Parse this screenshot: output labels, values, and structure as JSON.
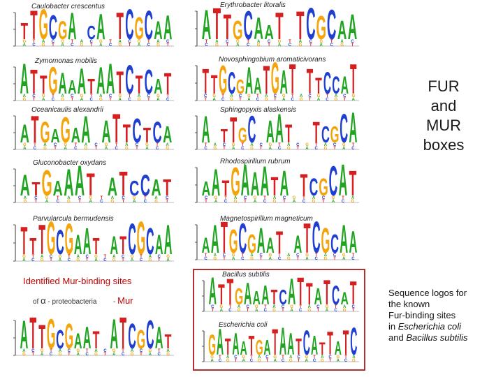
{
  "logo_colors": {
    "A": "#21a421",
    "C": "#1f3fd1",
    "G": "#f4a50c",
    "T": "#d42020"
  },
  "logos": [
    {
      "id": "caulobacter",
      "species": "Caulobacter crescentus",
      "motif": "TTGCGA.CA.TCGCAA"
    },
    {
      "id": "erythrobacter",
      "species": "Erythrobacter litoralis",
      "motif": "ATTGCAAT.TCGCAA"
    },
    {
      "id": "zymomonas",
      "species": "Zymomonas mobilis",
      "motif": "ATTGAAATAATCTCAT"
    },
    {
      "id": "novosphingobium",
      "species": "Novosphingobium aromaticivorans",
      "motif": "TTGCGAATGAT.TTCCAT"
    },
    {
      "id": "oceanicaulis",
      "species": "Oceanicaulis alexandrii",
      "motif": "ATGAGAA.ATTCTCA"
    },
    {
      "id": "sphingopyxis",
      "species": "Sphingopyxis alaskensis",
      "motif": "A.TTGC.AAT..TCGCA"
    },
    {
      "id": "gluconobacter",
      "species": "Gluconobacter oxydans",
      "motif": "ATGAAAT.ATCCAT"
    },
    {
      "id": "rhodospirillum",
      "species": "Rhodospirillum rubrum",
      "motif": "AATGAAATA.TCGCAT"
    },
    {
      "id": "parvularcula",
      "species": "Parvularcula bermudensis",
      "motif": "TTTGCGAAT.ATCGCAA"
    },
    {
      "id": "magnetospirillum",
      "species": "Magnetospirillum magneticum",
      "motif": "AATGCGAAT.ATCGCAA"
    },
    {
      "id": "alpha-mur",
      "species": "",
      "motif": "ATTGCGAAT.ATCGCAT"
    },
    {
      "id": "bacillus",
      "species": "Bacillus subtilis",
      "motif": "ATTGAAATCATTATCAT"
    },
    {
      "id": "ecoli",
      "species": "Escherichia coli",
      "motif": "GATAATGATAATCATTATC"
    }
  ],
  "side_title": [
    "FUR",
    "and",
    "MUR",
    "boxes"
  ],
  "mur_section": {
    "heading": "Identified Mur-binding sites",
    "sub_prefix": "of",
    "alpha": "α",
    "sub_suffix": "- proteobacteria",
    "dash": "-",
    "tag": "Mur"
  },
  "caption": {
    "line1": "Sequence logos for",
    "line2": "the known",
    "line3": "Fur-binding sites",
    "line4_prefix": "in",
    "ecoli": "Escherichia coli",
    "line5_prefix": "and",
    "bsub": "Bacillus subtilis"
  }
}
